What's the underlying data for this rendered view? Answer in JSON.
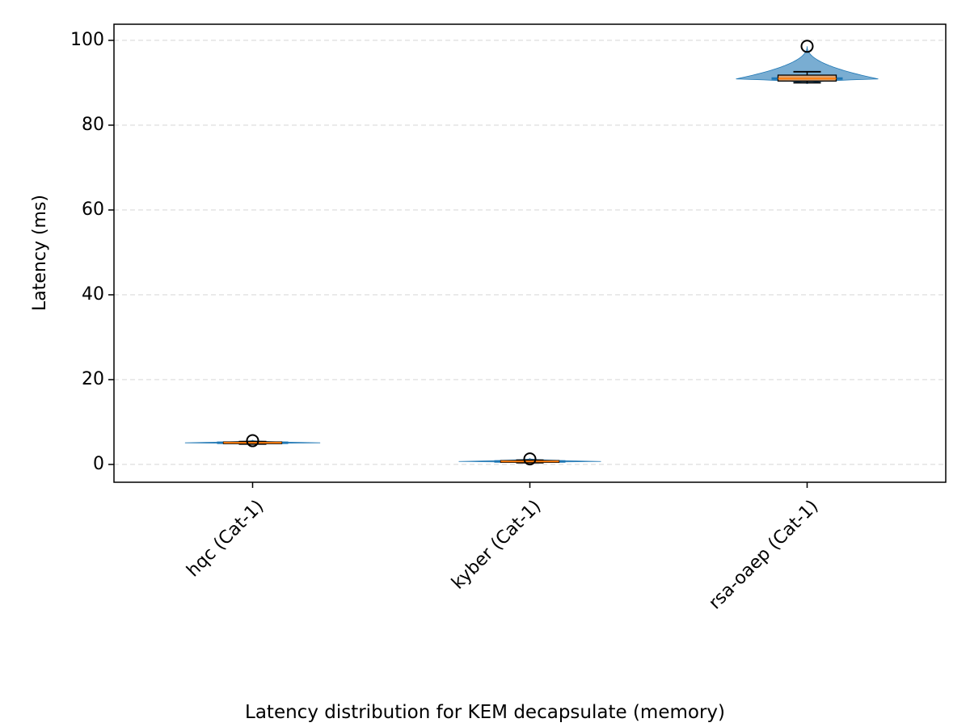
{
  "chart_data": {
    "type": "violin-box",
    "caption": "Latency distribution for KEM decapsulate (memory)",
    "title": "",
    "xlabel": "",
    "ylabel": "Latency (ms)",
    "ylim": [
      -4.2,
      103.8
    ],
    "yticks": [
      0,
      20,
      40,
      60,
      80,
      100
    ],
    "ytick_labels": [
      "0",
      "20",
      "40",
      "60",
      "80",
      "100"
    ],
    "grid": "y-dashed",
    "categories": [
      "hqc (Cat-1)",
      "kyber (Cat-1)",
      "rsa-oaep (Cat-1)"
    ],
    "series": [
      {
        "category": "hqc (Cat-1)",
        "median": 5.1,
        "q1": 4.9,
        "q3": 5.3,
        "whisker_low": 4.8,
        "whisker_high": 5.4,
        "outliers": [
          5.6
        ],
        "violin_min": 4.8,
        "violin_max": 5.7,
        "violin_mode": 5.1
      },
      {
        "category": "kyber (Cat-1)",
        "median": 0.7,
        "q1": 0.5,
        "q3": 0.9,
        "whisker_low": 0.4,
        "whisker_high": 1.0,
        "outliers": [
          1.3
        ],
        "violin_min": 0.4,
        "violin_max": 1.4,
        "violin_mode": 0.7
      },
      {
        "category": "rsa-oaep (Cat-1)",
        "median": 91.0,
        "q1": 90.4,
        "q3": 91.8,
        "whisker_low": 90.0,
        "whisker_high": 92.6,
        "outliers": [
          98.6
        ],
        "violin_min": 89.8,
        "violin_max": 98.6,
        "violin_mode": 90.9
      }
    ],
    "colors": {
      "violin": "#1f77b4",
      "box_fill": "#f4a460",
      "median": "#ff7f0e",
      "box_edge": "#000000",
      "grid": "#cccccc"
    }
  }
}
